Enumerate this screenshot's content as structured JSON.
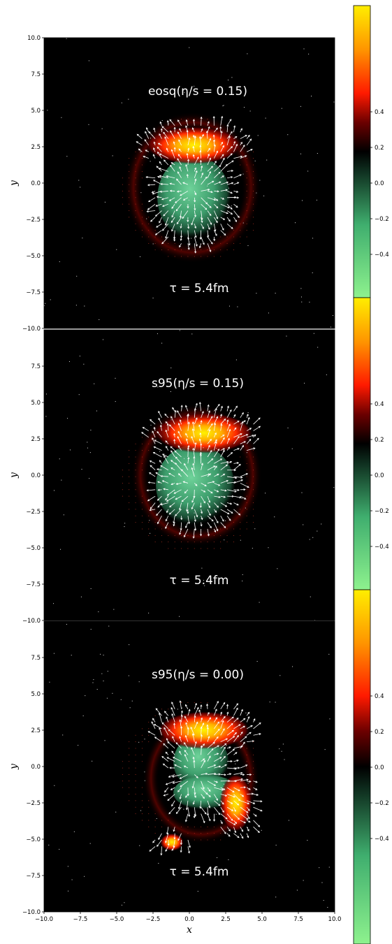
{
  "chart_data": [
    {
      "type": "heatmap",
      "title": "eosq(η/s = 0.15)",
      "annotation": "τ = 5.4fm",
      "ylabel": "y",
      "xlabel": "",
      "xlim": [
        -10,
        10
      ],
      "ylim": [
        -10,
        10
      ],
      "yticks": [
        "10.0",
        "7.5",
        "5.0",
        "2.5",
        "0.0",
        "−2.5",
        "−5.0",
        "−7.5",
        "−10.0"
      ],
      "xticks": [],
      "colorbar": {
        "range": [
          -0.5,
          0.5
        ],
        "ticks": [
          "0.4",
          "0.2",
          "0.0",
          "−0.2",
          "−0.4"
        ]
      },
      "blobs": [
        {
          "kind": "negative",
          "x": 0.3,
          "y": -1.0,
          "rx": 2.5,
          "ry": 2.9,
          "value": -0.22
        },
        {
          "kind": "positive",
          "x": 0.3,
          "y": 2.6,
          "rx": 3.3,
          "ry": 1.3,
          "value": 0.38
        },
        {
          "kind": "halo",
          "x": 0.2,
          "y": -0.3,
          "rx": 4.7,
          "ry": 5.2,
          "value": 0.06
        }
      ]
    },
    {
      "type": "heatmap",
      "title": "s95(η/s = 0.15)",
      "annotation": "τ = 5.4fm",
      "ylabel": "y",
      "xlabel": "",
      "xlim": [
        -10,
        10
      ],
      "ylim": [
        -10,
        10
      ],
      "yticks": [
        "7.5",
        "5.0",
        "2.5",
        "0.0",
        "−2.5",
        "−5.0",
        "−7.5",
        "−10.0"
      ],
      "xticks": [],
      "colorbar": {
        "range": [
          -0.5,
          0.5
        ],
        "ticks": [
          "0.4",
          "0.2",
          "0.0",
          "−0.2",
          "−0.4"
        ]
      },
      "blobs": [
        {
          "kind": "negative",
          "x": 0.4,
          "y": -0.7,
          "rx": 2.7,
          "ry": 2.8,
          "value": -0.25
        },
        {
          "kind": "positive",
          "x": 1.0,
          "y": 2.9,
          "rx": 3.4,
          "ry": 1.4,
          "value": 0.45
        },
        {
          "kind": "halo",
          "x": 0.5,
          "y": 0.0,
          "rx": 4.5,
          "ry": 4.9,
          "value": 0.06
        }
      ]
    },
    {
      "type": "heatmap",
      "title": "s95(η/s = 0.00)",
      "annotation": "τ = 5.4fm",
      "ylabel": "y",
      "xlabel": "x",
      "xlim": [
        -10,
        10
      ],
      "ylim": [
        -10,
        10
      ],
      "yticks": [
        "7.5",
        "5.0",
        "2.5",
        "0.0",
        "−2.5",
        "−5.0",
        "−7.5",
        "−10.0"
      ],
      "xticks": [
        "−10.0",
        "−7.5",
        "−5.0",
        "−2.5",
        "0.0",
        "2.5",
        "5.0",
        "7.5",
        "10.0"
      ],
      "colorbar": {
        "range": [
          -0.5,
          0.5
        ],
        "ticks": [
          "0.4",
          "0.2",
          "0.0",
          "−0.2",
          "−0.4"
        ]
      },
      "blobs": [
        {
          "kind": "negative",
          "x": 0.8,
          "y": 0.3,
          "rx": 1.9,
          "ry": 1.9,
          "value": -0.35
        },
        {
          "kind": "negative",
          "x": 1.2,
          "y": -1.8,
          "rx": 2.3,
          "ry": 1.2,
          "value": -0.2
        },
        {
          "kind": "positive",
          "x": 1.0,
          "y": 2.5,
          "rx": 3.2,
          "ry": 1.3,
          "value": 0.45
        },
        {
          "kind": "positive",
          "x": 3.2,
          "y": -2.5,
          "rx": 1.1,
          "ry": 2.0,
          "value": 0.3
        },
        {
          "kind": "positive",
          "x": -1.2,
          "y": -5.2,
          "rx": 0.8,
          "ry": 0.6,
          "value": 0.35
        },
        {
          "kind": "halo",
          "x": 0.8,
          "y": -0.8,
          "rx": 4.0,
          "ry": 4.5,
          "value": 0.05
        }
      ]
    }
  ]
}
